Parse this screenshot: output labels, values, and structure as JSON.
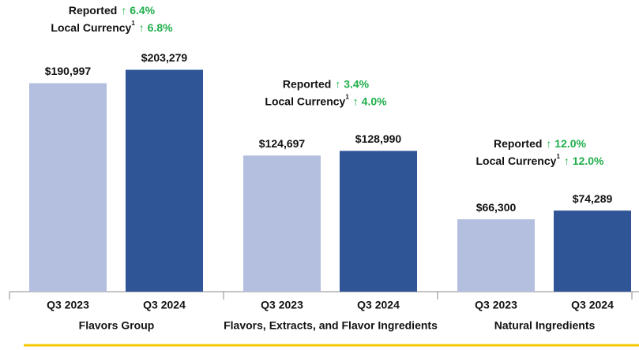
{
  "chart_data": {
    "type": "bar",
    "categories": [
      "Flavors Group",
      "Flavors, Extracts, and Flavor Ingredients",
      "Natural Ingredients"
    ],
    "series": [
      {
        "name": "Q3 2023",
        "color": "#b4bfe0",
        "values": [
          190997,
          124697,
          66300
        ],
        "value_labels": [
          "$190,997",
          "$124,697",
          "$66,300"
        ]
      },
      {
        "name": "Q3 2024",
        "color": "#2f5597",
        "values": [
          203279,
          128990,
          74289
        ],
        "value_labels": [
          "$203,279",
          "$128,990",
          "$74,289"
        ]
      }
    ],
    "ylim": [
      0,
      260000
    ],
    "annotations": [
      {
        "reported_label": "Reported",
        "reported": "↑ 6.4%",
        "local_label": "Local Currency",
        "footnote": "1",
        "local": "↑ 6.8%"
      },
      {
        "reported_label": "Reported",
        "reported": "↑ 3.4%",
        "local_label": "Local Currency",
        "footnote": "1",
        "local": "↑ 4.0%"
      },
      {
        "reported_label": "Reported",
        "reported": "↑ 12.0%",
        "local_label": "Local Currency",
        "footnote": "1",
        "local": "↑ 12.0%"
      }
    ],
    "annotation_color": "#1fae4b"
  }
}
